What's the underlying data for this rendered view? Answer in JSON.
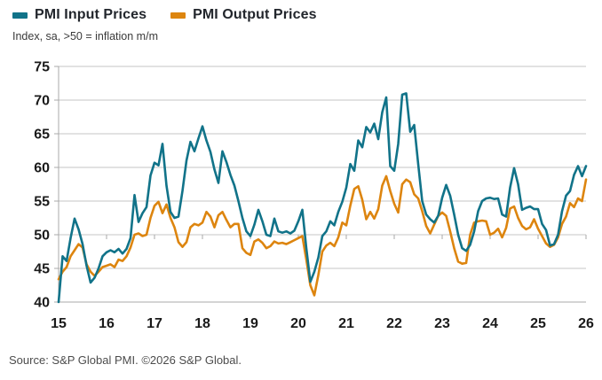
{
  "legend": [
    {
      "label": "PMI Input Prices",
      "color": "#117389"
    },
    {
      "label": "PMI Output Prices",
      "color": "#DD850F"
    }
  ],
  "subtitle": "Index, sa, >50 = inflation m/m",
  "source": "Source: S&P Global PMI. ©2026 S&P Global.",
  "colors": {
    "input_line": "#117389",
    "output_line": "#DD850F",
    "gridline": "#c6c6c6",
    "axis": "#a8a8a8",
    "tick_label": "#1a1a1a",
    "background": "#ffffff"
  },
  "chart_data": {
    "type": "line",
    "frequency": "monthly",
    "x_start_year": 2015,
    "x_end_year": 2026,
    "x_tick_labels": [
      "15",
      "16",
      "17",
      "18",
      "19",
      "20",
      "21",
      "22",
      "23",
      "24",
      "25",
      "26"
    ],
    "y_ticks": [
      40,
      45,
      50,
      55,
      60,
      65,
      70,
      75
    ],
    "ylim": [
      40,
      75
    ],
    "grid": true,
    "legend_position": "top-left",
    "neutral_level": 50,
    "series": [
      {
        "name": "PMI Input Prices",
        "color": "#117389",
        "values": [
          40.0,
          46.8,
          46.1,
          49.5,
          52.4,
          50.8,
          48.6,
          45.4,
          42.9,
          43.6,
          45.0,
          46.8,
          47.4,
          47.7,
          47.4,
          47.9,
          47.2,
          47.9,
          49.5,
          55.9,
          51.9,
          53.2,
          54.1,
          58.8,
          60.7,
          60.3,
          63.5,
          57.3,
          53.4,
          52.5,
          52.7,
          56.5,
          61.0,
          63.8,
          62.4,
          64.3,
          66.1,
          64.0,
          62.3,
          59.7,
          57.7,
          62.4,
          60.8,
          58.9,
          57.3,
          55.0,
          52.5,
          50.5,
          49.8,
          51.5,
          53.7,
          52.0,
          50.0,
          49.8,
          52.4,
          50.5,
          50.3,
          50.5,
          50.2,
          50.6,
          52.0,
          53.7,
          48.0,
          43.0,
          44.5,
          46.6,
          49.8,
          50.5,
          52.0,
          51.4,
          53.4,
          54.9,
          57.0,
          60.5,
          59.5,
          64.0,
          63.0,
          66.0,
          65.2,
          66.5,
          64.2,
          68.2,
          70.4,
          60.2,
          59.5,
          63.5,
          70.8,
          71.0,
          65.3,
          66.3,
          60.5,
          55.0,
          53.0,
          52.3,
          51.8,
          52.8,
          55.5,
          57.4,
          55.8,
          53.0,
          50.0,
          48.0,
          47.6,
          48.5,
          50.5,
          53.5,
          55.0,
          55.4,
          55.5,
          55.3,
          55.4,
          53.0,
          52.7,
          57.0,
          59.9,
          57.5,
          53.7,
          54.0,
          54.2,
          53.8,
          53.8,
          51.6,
          50.7,
          48.4,
          48.6,
          50.0,
          53.5,
          55.8,
          56.5,
          58.9,
          60.2,
          58.7,
          60.2
        ]
      },
      {
        "name": "PMI Output Prices",
        "color": "#DD850F",
        "values": [
          43.4,
          44.5,
          45.2,
          46.8,
          47.7,
          48.6,
          48.1,
          45.6,
          44.5,
          43.9,
          44.5,
          45.2,
          45.4,
          45.6,
          45.2,
          46.3,
          46.1,
          46.8,
          48.1,
          50.0,
          50.2,
          49.8,
          50.0,
          52.5,
          54.3,
          54.9,
          53.2,
          54.5,
          52.5,
          51.1,
          48.9,
          48.2,
          48.9,
          51.1,
          51.6,
          51.4,
          51.8,
          53.4,
          52.7,
          51.1,
          52.9,
          53.4,
          52.2,
          51.1,
          51.6,
          51.6,
          48.0,
          47.3,
          47.0,
          49.0,
          49.3,
          48.8,
          48.0,
          48.3,
          49.0,
          48.7,
          48.8,
          48.6,
          48.9,
          49.2,
          49.5,
          49.8,
          46.3,
          42.5,
          41.0,
          44.0,
          47.5,
          48.4,
          48.8,
          48.3,
          49.6,
          51.8,
          51.4,
          54.3,
          56.8,
          57.2,
          55.2,
          52.3,
          53.4,
          52.4,
          53.8,
          57.3,
          58.7,
          56.5,
          54.6,
          53.3,
          57.5,
          58.2,
          57.8,
          56.0,
          55.4,
          53.5,
          51.3,
          50.2,
          51.5,
          52.8,
          53.3,
          52.8,
          50.5,
          48.0,
          46.0,
          45.7,
          45.8,
          50.0,
          51.8,
          52.0,
          52.1,
          52.0,
          50.0,
          50.3,
          50.9,
          49.6,
          51.0,
          53.9,
          54.2,
          52.5,
          51.3,
          50.8,
          51.1,
          52.3,
          50.9,
          49.8,
          48.7,
          48.2,
          48.5,
          49.6,
          51.6,
          52.7,
          54.7,
          54.1,
          55.4,
          55.0,
          58.2
        ]
      }
    ]
  }
}
